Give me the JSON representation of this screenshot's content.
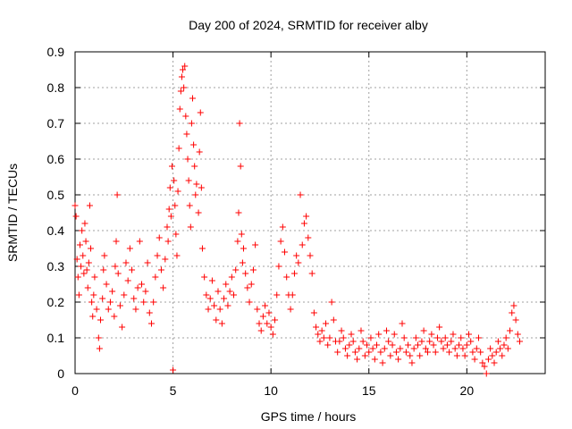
{
  "chart_data": {
    "type": "scatter",
    "title": "Day 200 of 2024, SRMTID for receiver alby",
    "xlabel": "GPS time / hours",
    "ylabel": "SRMTID / TECUs",
    "xlim": [
      0,
      24
    ],
    "ylim": [
      0,
      0.9
    ],
    "x_ticks": [
      0,
      5,
      10,
      15,
      20
    ],
    "x_tick_labels": [
      "0",
      "5",
      "10",
      "15",
      "20"
    ],
    "y_ticks": [
      0,
      0.1,
      0.2,
      0.3,
      0.4,
      0.5,
      0.6,
      0.7,
      0.8,
      0.9
    ],
    "y_tick_labels": [
      "0",
      "0.1",
      "0.2",
      "0.3",
      "0.4",
      "0.5",
      "0.6",
      "0.7",
      "0.8",
      "0.9"
    ],
    "grid": true,
    "marker": "+",
    "series": [
      {
        "name": "SRMTID",
        "color": "#ff0000",
        "points": [
          [
            0.0,
            0.47
          ],
          [
            0.05,
            0.44
          ],
          [
            0.1,
            0.32
          ],
          [
            0.15,
            0.27
          ],
          [
            0.2,
            0.22
          ],
          [
            0.25,
            0.36
          ],
          [
            0.3,
            0.3
          ],
          [
            0.35,
            0.4
          ],
          [
            0.4,
            0.33
          ],
          [
            0.45,
            0.28
          ],
          [
            0.5,
            0.42
          ],
          [
            0.55,
            0.37
          ],
          [
            0.6,
            0.29
          ],
          [
            0.65,
            0.24
          ],
          [
            0.7,
            0.31
          ],
          [
            0.75,
            0.47
          ],
          [
            0.8,
            0.35
          ],
          [
            0.85,
            0.2
          ],
          [
            0.9,
            0.16
          ],
          [
            0.95,
            0.22
          ],
          [
            1.0,
            0.27
          ],
          [
            1.1,
            0.18
          ],
          [
            1.2,
            0.1
          ],
          [
            1.25,
            0.07
          ],
          [
            1.3,
            0.15
          ],
          [
            1.4,
            0.21
          ],
          [
            1.45,
            0.29
          ],
          [
            1.5,
            0.33
          ],
          [
            1.6,
            0.25
          ],
          [
            1.7,
            0.18
          ],
          [
            1.8,
            0.2
          ],
          [
            1.9,
            0.23
          ],
          [
            2.0,
            0.16
          ],
          [
            2.05,
            0.3
          ],
          [
            2.1,
            0.37
          ],
          [
            2.15,
            0.5
          ],
          [
            2.2,
            0.28
          ],
          [
            2.3,
            0.19
          ],
          [
            2.4,
            0.13
          ],
          [
            2.5,
            0.22
          ],
          [
            2.6,
            0.31
          ],
          [
            2.7,
            0.26
          ],
          [
            2.8,
            0.35
          ],
          [
            2.9,
            0.29
          ],
          [
            3.0,
            0.21
          ],
          [
            3.1,
            0.18
          ],
          [
            3.2,
            0.24
          ],
          [
            3.3,
            0.37
          ],
          [
            3.4,
            0.25
          ],
          [
            3.5,
            0.2
          ],
          [
            3.6,
            0.23
          ],
          [
            3.7,
            0.31
          ],
          [
            3.8,
            0.17
          ],
          [
            3.9,
            0.14
          ],
          [
            4.0,
            0.2
          ],
          [
            4.1,
            0.27
          ],
          [
            4.2,
            0.33
          ],
          [
            4.3,
            0.38
          ],
          [
            4.4,
            0.29
          ],
          [
            4.5,
            0.24
          ],
          [
            4.6,
            0.32
          ],
          [
            4.7,
            0.41
          ],
          [
            4.75,
            0.37
          ],
          [
            4.8,
            0.46
          ],
          [
            4.85,
            0.52
          ],
          [
            4.9,
            0.44
          ],
          [
            4.95,
            0.58
          ],
          [
            5.0,
            0.01
          ],
          [
            5.05,
            0.54
          ],
          [
            5.1,
            0.47
          ],
          [
            5.15,
            0.39
          ],
          [
            5.2,
            0.33
          ],
          [
            5.25,
            0.51
          ],
          [
            5.3,
            0.63
          ],
          [
            5.35,
            0.74
          ],
          [
            5.4,
            0.79
          ],
          [
            5.45,
            0.83
          ],
          [
            5.5,
            0.85
          ],
          [
            5.55,
            0.8
          ],
          [
            5.6,
            0.86
          ],
          [
            5.65,
            0.72
          ],
          [
            5.7,
            0.67
          ],
          [
            5.75,
            0.6
          ],
          [
            5.8,
            0.54
          ],
          [
            5.85,
            0.47
          ],
          [
            5.9,
            0.41
          ],
          [
            5.95,
            0.7
          ],
          [
            6.0,
            0.77
          ],
          [
            6.05,
            0.64
          ],
          [
            6.1,
            0.58
          ],
          [
            6.15,
            0.5
          ],
          [
            6.2,
            0.53
          ],
          [
            6.3,
            0.45
          ],
          [
            6.35,
            0.62
          ],
          [
            6.4,
            0.73
          ],
          [
            6.45,
            0.52
          ],
          [
            6.5,
            0.35
          ],
          [
            6.6,
            0.27
          ],
          [
            6.7,
            0.22
          ],
          [
            6.8,
            0.18
          ],
          [
            6.9,
            0.21
          ],
          [
            7.0,
            0.26
          ],
          [
            7.1,
            0.19
          ],
          [
            7.2,
            0.15
          ],
          [
            7.3,
            0.23
          ],
          [
            7.4,
            0.18
          ],
          [
            7.5,
            0.14
          ],
          [
            7.6,
            0.21
          ],
          [
            7.7,
            0.25
          ],
          [
            7.8,
            0.19
          ],
          [
            7.9,
            0.23
          ],
          [
            8.0,
            0.27
          ],
          [
            8.1,
            0.22
          ],
          [
            8.2,
            0.29
          ],
          [
            8.3,
            0.37
          ],
          [
            8.35,
            0.45
          ],
          [
            8.4,
            0.7
          ],
          [
            8.45,
            0.58
          ],
          [
            8.5,
            0.39
          ],
          [
            8.55,
            0.31
          ],
          [
            8.6,
            0.35
          ],
          [
            8.7,
            0.28
          ],
          [
            8.8,
            0.24
          ],
          [
            8.9,
            0.2
          ],
          [
            9.0,
            0.25
          ],
          [
            9.1,
            0.29
          ],
          [
            9.2,
            0.36
          ],
          [
            9.3,
            0.18
          ],
          [
            9.4,
            0.14
          ],
          [
            9.5,
            0.12
          ],
          [
            9.6,
            0.16
          ],
          [
            9.7,
            0.19
          ],
          [
            9.8,
            0.14
          ],
          [
            9.9,
            0.17
          ],
          [
            10.0,
            0.13
          ],
          [
            10.1,
            0.11
          ],
          [
            10.2,
            0.15
          ],
          [
            10.3,
            0.22
          ],
          [
            10.4,
            0.3
          ],
          [
            10.5,
            0.37
          ],
          [
            10.6,
            0.41
          ],
          [
            10.7,
            0.34
          ],
          [
            10.8,
            0.27
          ],
          [
            10.9,
            0.22
          ],
          [
            11.0,
            0.18
          ],
          [
            11.1,
            0.22
          ],
          [
            11.2,
            0.28
          ],
          [
            11.3,
            0.33
          ],
          [
            11.4,
            0.31
          ],
          [
            11.5,
            0.5
          ],
          [
            11.6,
            0.36
          ],
          [
            11.7,
            0.42
          ],
          [
            11.8,
            0.44
          ],
          [
            11.9,
            0.38
          ],
          [
            12.0,
            0.33
          ],
          [
            12.1,
            0.28
          ],
          [
            12.2,
            0.17
          ],
          [
            12.3,
            0.13
          ],
          [
            12.4,
            0.11
          ],
          [
            12.5,
            0.09
          ],
          [
            12.6,
            0.12
          ],
          [
            12.7,
            0.1
          ],
          [
            12.8,
            0.14
          ],
          [
            12.9,
            0.08
          ],
          [
            13.0,
            0.1
          ],
          [
            13.1,
            0.2
          ],
          [
            13.2,
            0.15
          ],
          [
            13.3,
            0.09
          ],
          [
            13.4,
            0.06
          ],
          [
            13.5,
            0.09
          ],
          [
            13.6,
            0.12
          ],
          [
            13.7,
            0.1
          ],
          [
            13.8,
            0.07
          ],
          [
            13.9,
            0.05
          ],
          [
            14.0,
            0.08
          ],
          [
            14.1,
            0.11
          ],
          [
            14.2,
            0.09
          ],
          [
            14.3,
            0.06
          ],
          [
            14.4,
            0.04
          ],
          [
            14.5,
            0.07
          ],
          [
            14.6,
            0.12
          ],
          [
            14.7,
            0.09
          ],
          [
            14.8,
            0.05
          ],
          [
            14.9,
            0.08
          ],
          [
            15.0,
            0.06
          ],
          [
            15.1,
            0.1
          ],
          [
            15.2,
            0.07
          ],
          [
            15.3,
            0.04
          ],
          [
            15.4,
            0.08
          ],
          [
            15.5,
            0.11
          ],
          [
            15.6,
            0.06
          ],
          [
            15.7,
            0.03
          ],
          [
            15.8,
            0.07
          ],
          [
            15.9,
            0.12
          ],
          [
            16.0,
            0.09
          ],
          [
            16.1,
            0.05
          ],
          [
            16.2,
            0.08
          ],
          [
            16.3,
            0.11
          ],
          [
            16.4,
            0.06
          ],
          [
            16.5,
            0.04
          ],
          [
            16.6,
            0.07
          ],
          [
            16.7,
            0.14
          ],
          [
            16.8,
            0.1
          ],
          [
            16.9,
            0.06
          ],
          [
            17.0,
            0.08
          ],
          [
            17.1,
            0.05
          ],
          [
            17.2,
            0.03
          ],
          [
            17.3,
            0.07
          ],
          [
            17.4,
            0.1
          ],
          [
            17.5,
            0.08
          ],
          [
            17.6,
            0.05
          ],
          [
            17.7,
            0.09
          ],
          [
            17.8,
            0.12
          ],
          [
            17.9,
            0.07
          ],
          [
            18.0,
            0.06
          ],
          [
            18.1,
            0.09
          ],
          [
            18.2,
            0.11
          ],
          [
            18.3,
            0.08
          ],
          [
            18.4,
            0.06
          ],
          [
            18.5,
            0.1
          ],
          [
            18.6,
            0.13
          ],
          [
            18.7,
            0.09
          ],
          [
            18.8,
            0.07
          ],
          [
            18.9,
            0.1
          ],
          [
            19.0,
            0.08
          ],
          [
            19.1,
            0.06
          ],
          [
            19.2,
            0.09
          ],
          [
            19.3,
            0.11
          ],
          [
            19.4,
            0.07
          ],
          [
            19.5,
            0.05
          ],
          [
            19.6,
            0.08
          ],
          [
            19.7,
            0.1
          ],
          [
            19.8,
            0.07
          ],
          [
            19.9,
            0.05
          ],
          [
            20.0,
            0.08
          ],
          [
            20.1,
            0.11
          ],
          [
            20.2,
            0.09
          ],
          [
            20.3,
            0.06
          ],
          [
            20.4,
            0.04
          ],
          [
            20.5,
            0.07
          ],
          [
            20.6,
            0.1
          ],
          [
            20.7,
            0.06
          ],
          [
            20.8,
            0.03
          ],
          [
            20.9,
            0.02
          ],
          [
            21.0,
            0.0
          ],
          [
            21.1,
            0.04
          ],
          [
            21.2,
            0.07
          ],
          [
            21.3,
            0.05
          ],
          [
            21.4,
            0.03
          ],
          [
            21.5,
            0.06
          ],
          [
            21.6,
            0.09
          ],
          [
            21.7,
            0.07
          ],
          [
            21.8,
            0.05
          ],
          [
            21.9,
            0.08
          ],
          [
            22.0,
            0.1
          ],
          [
            22.1,
            0.07
          ],
          [
            22.2,
            0.12
          ],
          [
            22.3,
            0.17
          ],
          [
            22.4,
            0.19
          ],
          [
            22.5,
            0.15
          ],
          [
            22.6,
            0.11
          ],
          [
            22.7,
            0.09
          ]
        ]
      }
    ]
  }
}
